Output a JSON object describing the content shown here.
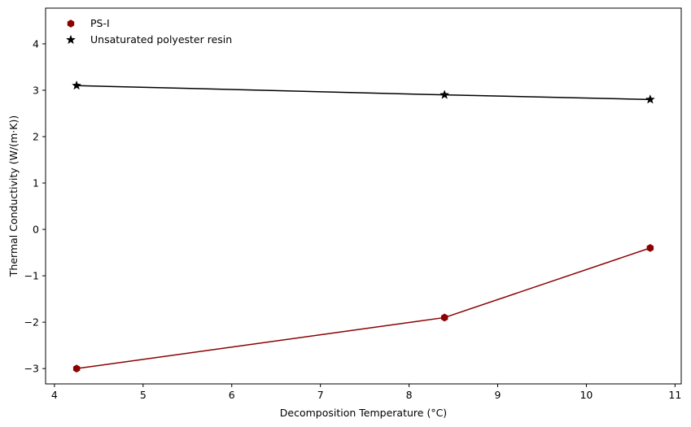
{
  "chart_data": {
    "type": "line",
    "title": "",
    "xlabel": "Decomposition Temperature (°C)",
    "ylabel": "Thermal Conductivity (W/(m·K))",
    "xlim": [
      3.9,
      11.07
    ],
    "ylim": [
      -3.33,
      4.77
    ],
    "xticks": [
      4,
      5,
      6,
      7,
      8,
      9,
      10,
      11
    ],
    "yticks": [
      -3,
      -2,
      -1,
      0,
      1,
      2,
      3,
      4
    ],
    "grid": false,
    "legend_position": "top-left",
    "series": [
      {
        "name": "PS-I",
        "marker": "hexagon",
        "color": "#8b0000",
        "x": [
          4.25,
          8.4,
          10.72
        ],
        "y": [
          -3.0,
          -1.9,
          -0.4
        ]
      },
      {
        "name": "Unsaturated polyester resin",
        "marker": "star",
        "color": "#000000",
        "x": [
          4.25,
          8.4,
          10.72
        ],
        "y": [
          3.1,
          2.9,
          2.8
        ]
      }
    ]
  }
}
